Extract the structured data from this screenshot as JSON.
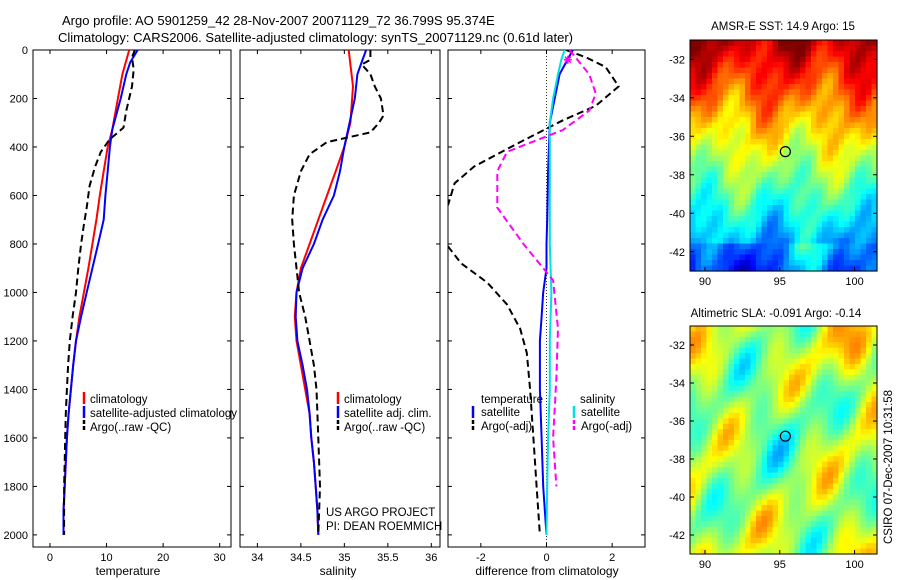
{
  "header": {
    "title_line1": "Argo profile: AO 5901259_42 28-Nov-2007 20071129_72 36.799S 95.374E",
    "title_line2": "Climatology: CARS2006. Satellite-adjusted climatology: synTS_20071129.nc (0.61d later)"
  },
  "credit": {
    "line1": "US ARGO PROJECT",
    "line2": "PI: DEAN ROEMMICH",
    "stamp": "CSIRO 07-Dec-2007 10:31:58"
  },
  "colors": {
    "climatology": "#ff0000",
    "satellite": "#0000ff",
    "argo": "#000000",
    "sal_satellite": "#00e0e0",
    "sal_argo": "#ff00ff"
  },
  "chart_data": [
    {
      "id": "temperature",
      "type": "line",
      "xlabel": "temperature",
      "x_ticks": [
        "0",
        "10",
        "20",
        "30"
      ],
      "xlim": [
        -3,
        32
      ],
      "ylim": [
        0,
        2050
      ],
      "y_ticks": [
        "0",
        "200",
        "400",
        "600",
        "800",
        "1000",
        "1200",
        "1400",
        "1600",
        "1800",
        "2000"
      ],
      "legend": [
        "climatology",
        "satellite-adjusted climatology",
        "Argo(..raw -QC)"
      ],
      "series": [
        {
          "name": "climatology",
          "color": "#ff0000",
          "dash": "",
          "points": [
            [
              14,
              0
            ],
            [
              13.4,
              50
            ],
            [
              12.8,
              100
            ],
            [
              12,
              200
            ],
            [
              11,
              330
            ],
            [
              10.2,
              400
            ],
            [
              9.5,
              500
            ],
            [
              8.8,
              600
            ],
            [
              8.2,
              700
            ],
            [
              7.5,
              800
            ],
            [
              6.8,
              900
            ],
            [
              6,
              1000
            ],
            [
              5.2,
              1100
            ],
            [
              4.6,
              1200
            ],
            [
              4.1,
              1300
            ],
            [
              3.7,
              1400
            ],
            [
              3.3,
              1500
            ],
            [
              3,
              1600
            ],
            [
              2.8,
              1700
            ],
            [
              2.6,
              1800
            ],
            [
              2.4,
              1900
            ],
            [
              2.4,
              2000
            ]
          ]
        },
        {
          "name": "satellite-adjusted climatology",
          "color": "#0000ff",
          "dash": "",
          "points": [
            [
              15.5,
              0
            ],
            [
              14.2,
              50
            ],
            [
              13.5,
              100
            ],
            [
              12.5,
              200
            ],
            [
              11,
              330
            ],
            [
              10.6,
              400
            ],
            [
              10.2,
              500
            ],
            [
              9.8,
              600
            ],
            [
              9.5,
              700
            ],
            [
              8.5,
              800
            ],
            [
              7.5,
              900
            ],
            [
              6.5,
              1000
            ],
            [
              5.5,
              1100
            ],
            [
              4.6,
              1200
            ],
            [
              4.1,
              1300
            ],
            [
              3.7,
              1400
            ],
            [
              3.3,
              1500
            ],
            [
              3,
              1600
            ],
            [
              2.8,
              1700
            ],
            [
              2.6,
              1800
            ],
            [
              2.4,
              1900
            ],
            [
              2.4,
              2000
            ]
          ]
        },
        {
          "name": "Argo(..raw -QC)",
          "color": "#000000",
          "dash": "7,4",
          "points": [
            [
              15,
              0
            ],
            [
              14.5,
              30
            ],
            [
              14.8,
              80
            ],
            [
              14.5,
              150
            ],
            [
              13.5,
              250
            ],
            [
              13,
              320
            ],
            [
              10.5,
              370
            ],
            [
              9,
              420
            ],
            [
              8,
              480
            ],
            [
              7,
              560
            ],
            [
              6.5,
              650
            ],
            [
              6,
              720
            ],
            [
              5.5,
              800
            ],
            [
              5,
              900
            ],
            [
              4.6,
              1000
            ],
            [
              4,
              1100
            ],
            [
              3.5,
              1200
            ],
            [
              3.2,
              1300
            ],
            [
              3,
              1400
            ],
            [
              2.8,
              1500
            ],
            [
              2.7,
              1600
            ],
            [
              2.6,
              1700
            ],
            [
              2.5,
              1800
            ],
            [
              2.5,
              2000
            ]
          ]
        }
      ]
    },
    {
      "id": "salinity",
      "type": "line",
      "xlabel": "salinity",
      "x_ticks": [
        "34",
        "34.5",
        "35",
        "35.5",
        "36"
      ],
      "xlim": [
        33.8,
        36.1
      ],
      "ylim": [
        0,
        2050
      ],
      "legend": [
        "climatology",
        "satellite adj. clim.",
        "Argo(..raw -QC)"
      ],
      "series": [
        {
          "name": "climatology",
          "color": "#ff0000",
          "dash": "",
          "points": [
            [
              35.05,
              0
            ],
            [
              35.07,
              60
            ],
            [
              35.1,
              150
            ],
            [
              35.07,
              300
            ],
            [
              35,
              400
            ],
            [
              34.9,
              500
            ],
            [
              34.8,
              600
            ],
            [
              34.7,
              700
            ],
            [
              34.6,
              800
            ],
            [
              34.5,
              900
            ],
            [
              34.45,
              1000
            ],
            [
              34.43,
              1100
            ],
            [
              34.45,
              1200
            ],
            [
              34.5,
              1300
            ],
            [
              34.55,
              1400
            ],
            [
              34.6,
              1500
            ],
            [
              34.62,
              1600
            ],
            [
              34.65,
              1700
            ],
            [
              34.67,
              1800
            ],
            [
              34.69,
              1900
            ],
            [
              34.7,
              2000
            ]
          ]
        },
        {
          "name": "satellite adj. clim.",
          "color": "#0000ff",
          "dash": "",
          "points": [
            [
              35.25,
              0
            ],
            [
              35.2,
              50
            ],
            [
              35.15,
              100
            ],
            [
              35.12,
              200
            ],
            [
              35.06,
              300
            ],
            [
              35,
              400
            ],
            [
              34.95,
              500
            ],
            [
              34.88,
              600
            ],
            [
              34.75,
              700
            ],
            [
              34.65,
              800
            ],
            [
              34.52,
              900
            ],
            [
              34.45,
              1000
            ],
            [
              34.44,
              1100
            ],
            [
              34.46,
              1200
            ],
            [
              34.52,
              1300
            ],
            [
              34.57,
              1400
            ],
            [
              34.6,
              1500
            ],
            [
              34.62,
              1600
            ],
            [
              34.65,
              1700
            ],
            [
              34.67,
              1800
            ],
            [
              34.69,
              1900
            ],
            [
              34.7,
              2000
            ]
          ]
        },
        {
          "name": "Argo(..raw -QC)",
          "color": "#000000",
          "dash": "7,4",
          "points": [
            [
              35.3,
              0
            ],
            [
              35.3,
              40
            ],
            [
              35.2,
              60
            ],
            [
              35.3,
              100
            ],
            [
              35.35,
              150
            ],
            [
              35.42,
              200
            ],
            [
              35.45,
              270
            ],
            [
              35.4,
              300
            ],
            [
              35.3,
              340
            ],
            [
              34.8,
              380
            ],
            [
              34.6,
              430
            ],
            [
              34.5,
              500
            ],
            [
              34.42,
              600
            ],
            [
              34.4,
              700
            ],
            [
              34.42,
              800
            ],
            [
              34.45,
              900
            ],
            [
              34.48,
              1000
            ],
            [
              34.55,
              1100
            ],
            [
              34.6,
              1200
            ],
            [
              34.65,
              1300
            ],
            [
              34.68,
              1400
            ],
            [
              34.7,
              1600
            ],
            [
              34.72,
              1800
            ],
            [
              34.7,
              2000
            ]
          ]
        }
      ]
    },
    {
      "id": "difference",
      "type": "line",
      "xlabel": "difference from climatology",
      "x_ticks": [
        "-2",
        "0",
        "2"
      ],
      "xlim": [
        -3,
        3
      ],
      "ylim": [
        0,
        2050
      ],
      "legend_temperature_title": "temperature",
      "legend_salinity_title": "salinity",
      "legend_temperature": [
        "satellite",
        "Argo(-adj)"
      ],
      "legend_salinity": [
        "satellite",
        "Argo(-adj)"
      ],
      "series": [
        {
          "name": "satellite",
          "group": "temperature",
          "color": "#0000ff",
          "dash": "",
          "points": [
            [
              0.8,
              0
            ],
            [
              0.6,
              50
            ],
            [
              0.4,
              100
            ],
            [
              0.25,
              200
            ],
            [
              0.1,
              300
            ],
            [
              0.05,
              500
            ],
            [
              0.02,
              700
            ],
            [
              0,
              800
            ],
            [
              0,
              900
            ],
            [
              -0.1,
              1000
            ],
            [
              -0.15,
              1100
            ],
            [
              -0.2,
              1200
            ],
            [
              -0.2,
              1400
            ],
            [
              -0.15,
              1600
            ],
            [
              -0.1,
              1800
            ],
            [
              0,
              2000
            ]
          ]
        },
        {
          "name": "Argo(-adj)",
          "group": "temperature",
          "color": "#000000",
          "dash": "7,4",
          "points": [
            [
              0.6,
              0
            ],
            [
              1.2,
              30
            ],
            [
              1.8,
              70
            ],
            [
              2.2,
              150
            ],
            [
              1.5,
              230
            ],
            [
              0.5,
              290
            ],
            [
              -0.8,
              380
            ],
            [
              -2.2,
              480
            ],
            [
              -2.8,
              550
            ],
            [
              -3,
              640
            ]
          ]
        },
        {
          "name": "Argo(-adj) deep",
          "group": "temperature",
          "color": "#000000",
          "dash": "7,4",
          "points": [
            [
              -3,
              810
            ],
            [
              -2.6,
              880
            ],
            [
              -1.8,
              960
            ],
            [
              -1.2,
              1050
            ],
            [
              -0.8,
              1150
            ],
            [
              -0.6,
              1250
            ],
            [
              -0.5,
              1400
            ],
            [
              -0.4,
              1600
            ],
            [
              -0.3,
              1800
            ],
            [
              -0.2,
              2000
            ]
          ]
        },
        {
          "name": "satellite",
          "group": "salinity",
          "color": "#00e0e0",
          "dash": "",
          "points": [
            [
              0.55,
              0
            ],
            [
              0.45,
              40
            ],
            [
              0.35,
              100
            ],
            [
              0.2,
              200
            ],
            [
              0.1,
              300
            ],
            [
              0.1,
              500
            ],
            [
              0.1,
              800
            ],
            [
              0.15,
              1000
            ],
            [
              0.1,
              1200
            ],
            [
              0.1,
              1400
            ],
            [
              0.05,
              1600
            ],
            [
              0.02,
              1800
            ],
            [
              0,
              2000
            ]
          ]
        },
        {
          "name": "Argo(-adj)",
          "group": "salinity",
          "color": "#ff00ff",
          "dash": "7,4",
          "points": [
            [
              0.7,
              0
            ],
            [
              1.0,
              50
            ],
            [
              1.3,
              100
            ],
            [
              1.5,
              180
            ],
            [
              1.3,
              250
            ],
            [
              0.5,
              330
            ],
            [
              -1.2,
              420
            ],
            [
              -1.5,
              500
            ],
            [
              -1.5,
              650
            ],
            [
              -0.7,
              800
            ],
            [
              0.2,
              950
            ],
            [
              0.35,
              1150
            ],
            [
              0.3,
              1350
            ],
            [
              0.2,
              1600
            ],
            [
              0.3,
              1800
            ]
          ]
        }
      ]
    },
    {
      "id": "sst_map",
      "type": "heatmap",
      "title": "AMSR-E SST: 14.9  Argo: 15",
      "x_ticks": [
        "90",
        "95",
        "100"
      ],
      "y_ticks": [
        "-32",
        "-34",
        "-36",
        "-38",
        "-40",
        "-42"
      ],
      "xlim": [
        89,
        101.5
      ],
      "ylim": [
        -43,
        -31
      ],
      "marker": [
        95.374,
        -36.799
      ]
    },
    {
      "id": "sla_map",
      "type": "heatmap",
      "title": "Altimetric SLA: -0.091  Argo: -0.14",
      "x_ticks": [
        "90",
        "95",
        "100"
      ],
      "y_ticks": [
        "-32",
        "-34",
        "-36",
        "-38",
        "-40",
        "-42"
      ],
      "xlim": [
        89,
        101.5
      ],
      "ylim": [
        -43,
        -31
      ],
      "marker": [
        95.374,
        -36.799
      ]
    }
  ]
}
